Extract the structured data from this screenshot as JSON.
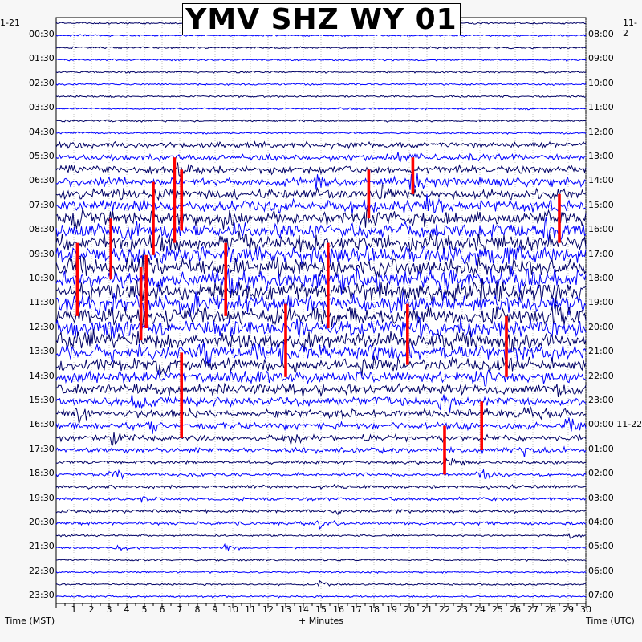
{
  "title": "YMV SHZ WY 01",
  "corner_left": "1-21",
  "corner_right": "11-2",
  "footer": {
    "left_label": "Time (MST)",
    "center_label": "+ Minutes",
    "right_label": "Time (UTC)"
  },
  "colors": {
    "trace_dark": "#000066",
    "trace_blue": "#0000ff",
    "event": "#ff0000",
    "background": "#ffffff"
  },
  "chart_data": {
    "type": "helicorder",
    "x_ticks": [
      1,
      2,
      3,
      4,
      5,
      6,
      7,
      8,
      9,
      10,
      11,
      12,
      13,
      14,
      15,
      16,
      17,
      18,
      19,
      20,
      21,
      22,
      23,
      24,
      25,
      26,
      27,
      28,
      29,
      30
    ],
    "xlim": [
      0,
      30
    ],
    "left_time_labels": [
      "00:30",
      "01:30",
      "02:30",
      "03:30",
      "04:30",
      "05:30",
      "06:30",
      "07:30",
      "08:30",
      "09:30",
      "10:30",
      "11:30",
      "12:30",
      "13:30",
      "14:30",
      "15:30",
      "16:30",
      "17:30",
      "18:30",
      "19:30",
      "20:30",
      "21:30",
      "22:30",
      "23:30"
    ],
    "right_time_labels": [
      "08:00",
      "09:00",
      "10:00",
      "11:00",
      "12:00",
      "13:00",
      "14:00",
      "15:00",
      "16:00",
      "17:00",
      "18:00",
      "19:00",
      "20:00",
      "21:00",
      "22:00",
      "23:00",
      "00:00 11-22",
      "01:00",
      "02:00",
      "03:00",
      "04:00",
      "05:00",
      "06:00",
      "07:00"
    ],
    "rows": 48,
    "grid": true,
    "activity_window": {
      "start": "05:30",
      "end": "18:30",
      "unit": "MST"
    }
  }
}
